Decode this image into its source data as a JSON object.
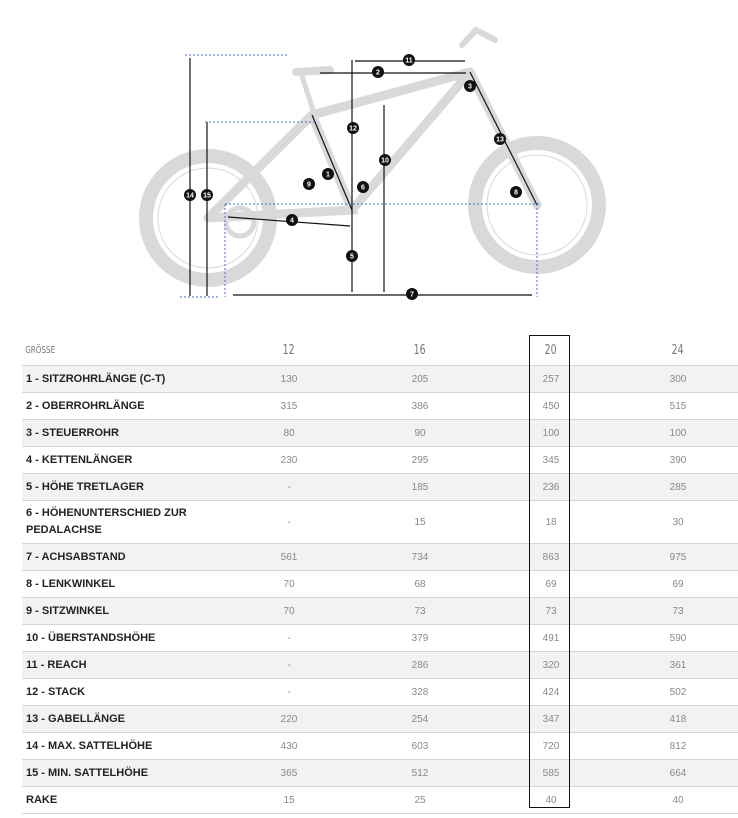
{
  "diagram": {
    "markers": [
      "1",
      "2",
      "3",
      "4",
      "5",
      "6",
      "7",
      "8",
      "9",
      "10",
      "11",
      "12",
      "13",
      "14",
      "15"
    ],
    "highlight_color": "#111111",
    "bike_color": "#d9d9d9"
  },
  "table": {
    "header": [
      "GRÖSSE",
      "12",
      "16",
      "20",
      "24"
    ],
    "highlighted_size": "20",
    "rows": [
      {
        "label": "1 - SITZROHRLÄNGE (C-T)",
        "values": [
          "130",
          "205",
          "257",
          "300"
        ]
      },
      {
        "label": "2 - OBERROHRLÄNGE",
        "values": [
          "315",
          "386",
          "450",
          "515"
        ]
      },
      {
        "label": "3 - STEUERROHR",
        "values": [
          "80",
          "90",
          "100",
          "100"
        ]
      },
      {
        "label": "4 - KETTENLÄNGER",
        "values": [
          "230",
          "295",
          "345",
          "390"
        ]
      },
      {
        "label": "5 - HÖHE TRETLAGER",
        "values": [
          "-",
          "185",
          "236",
          "285"
        ]
      },
      {
        "label": "6 - HÖHENUNTERSCHIED ZUR PEDALACHSE",
        "values": [
          "-",
          "15",
          "18",
          "30"
        ]
      },
      {
        "label": "7 - ACHSABSTAND",
        "values": [
          "561",
          "734",
          "863",
          "975"
        ]
      },
      {
        "label": "8 - LENKWINKEL",
        "values": [
          "70",
          "68",
          "69",
          "69"
        ]
      },
      {
        "label": "9 - SITZWINKEL",
        "values": [
          "70",
          "73",
          "73",
          "73"
        ]
      },
      {
        "label": "10 - ÜBERSTANDSHÖHE",
        "values": [
          "-",
          "379",
          "491",
          "590"
        ]
      },
      {
        "label": "11 - REACH",
        "values": [
          "-",
          "286",
          "320",
          "361"
        ]
      },
      {
        "label": "12 - STACK",
        "values": [
          "-",
          "328",
          "424",
          "502"
        ]
      },
      {
        "label": "13 - GABELLÄNGE",
        "values": [
          "220",
          "254",
          "347",
          "418"
        ]
      },
      {
        "label": "14 - MAX. SATTELHÖHE",
        "values": [
          "430",
          "603",
          "720",
          "812"
        ]
      },
      {
        "label": "15 - MIN. SATTELHÖHE",
        "values": [
          "365",
          "512",
          "585",
          "664"
        ]
      },
      {
        "label": "RAKE",
        "values": [
          "15",
          "25",
          "40",
          "40"
        ]
      }
    ]
  }
}
